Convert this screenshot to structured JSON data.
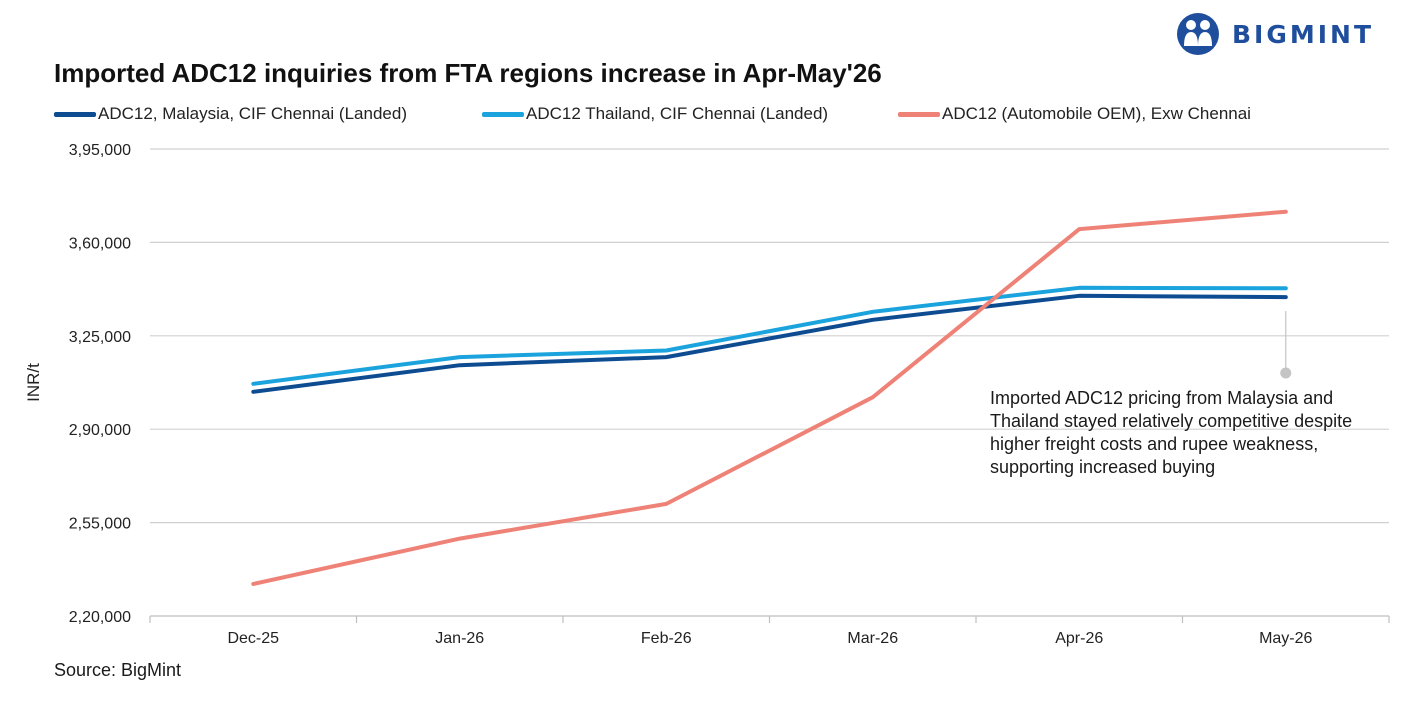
{
  "brand": {
    "name": "BIGMINT",
    "color": "#1f4e9c"
  },
  "source": "Source: BigMint",
  "annotation": "Imported ADC12 pricing from Malaysia and Thailand stayed relatively competitive despite higher freight costs and rupee weakness, supporting increased buying",
  "chart_data": {
    "type": "line",
    "title": "Imported ADC12 inquiries from FTA regions increase in Apr-May'26",
    "xlabel": "",
    "ylabel": "INR/t",
    "ylim": [
      220000,
      395000
    ],
    "yticks": [
      220000,
      255000,
      290000,
      325000,
      360000,
      395000
    ],
    "ytick_labels": [
      "2,20,000",
      "2,55,000",
      "2,90,000",
      "3,25,000",
      "3,60,000",
      "3,95,000"
    ],
    "categories": [
      "Dec-25",
      "Jan-26",
      "Feb-26",
      "Mar-26",
      "Apr-26",
      "May-26"
    ],
    "grid": true,
    "legend_position": "top",
    "series": [
      {
        "name": "ADC12, Malaysia, CIF Chennai (Landed)",
        "color": "#0e4c92",
        "values": [
          304000,
          314000,
          317000,
          331000,
          340000,
          339500
        ]
      },
      {
        "name": "ADC12 Thailand, CIF Chennai (Landed)",
        "color": "#1aa3dc",
        "values": [
          307000,
          317000,
          319500,
          334000,
          343000,
          342800
        ]
      },
      {
        "name": "ADC12 (Automobile OEM), Exw Chennai",
        "color": "#ef8277",
        "values": [
          232000,
          249000,
          262000,
          302000,
          365000,
          371500
        ]
      }
    ]
  }
}
